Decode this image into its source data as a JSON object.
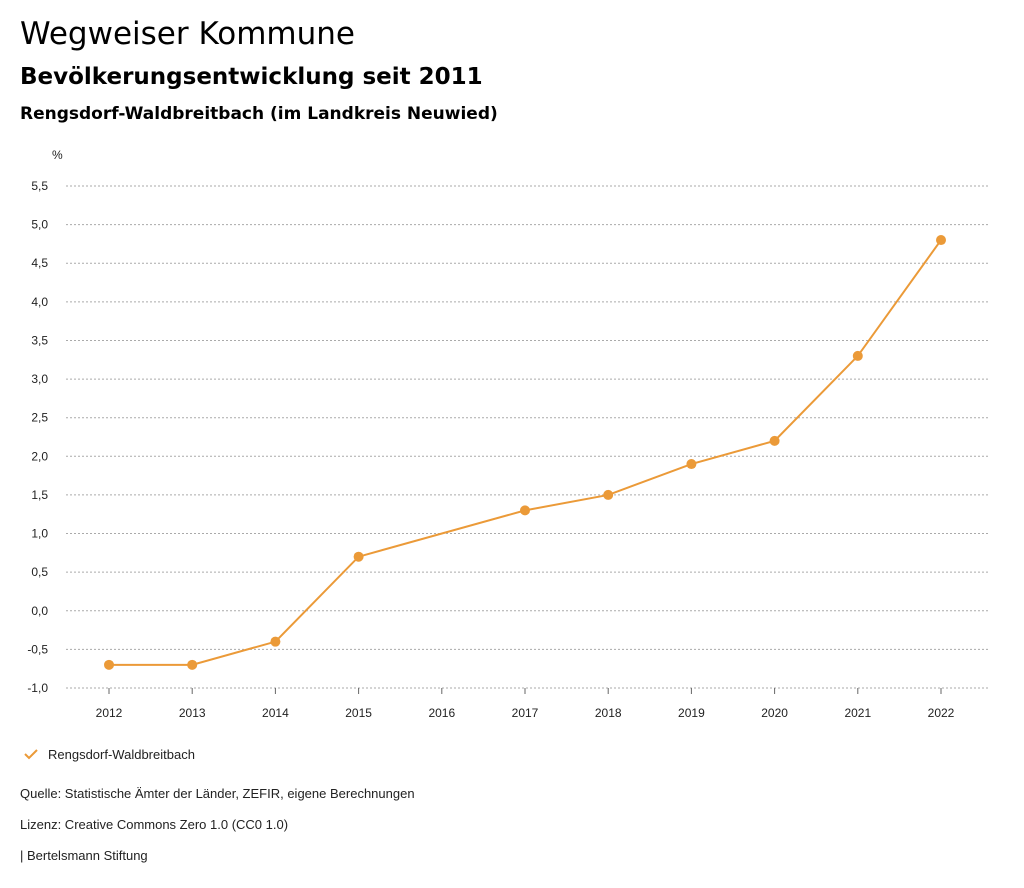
{
  "header": {
    "title": "Wegweiser Kommune",
    "subtitle": "Bevölkerungsentwicklung seit 2011",
    "region": "Rengsdorf-Waldbreitbach (im Landkreis Neuwied)"
  },
  "chart_data": {
    "type": "line",
    "unit_label": "%",
    "x": [
      "2012",
      "2013",
      "2014",
      "2015",
      "2016",
      "2017",
      "2018",
      "2019",
      "2020",
      "2021",
      "2022"
    ],
    "series": [
      {
        "name": "Rengsdorf-Waldbreitbach",
        "values": [
          -0.7,
          -0.7,
          -0.4,
          0.7,
          null,
          1.3,
          1.5,
          1.9,
          2.2,
          3.3,
          4.8
        ],
        "color": "#eb9a38"
      }
    ],
    "ylim": [
      -1.0,
      5.5
    ],
    "yticks": [
      5.5,
      5.0,
      4.5,
      4.0,
      3.5,
      3.0,
      2.5,
      2.0,
      1.5,
      1.0,
      0.5,
      0.0,
      -0.5,
      -1.0
    ],
    "ytick_labels": [
      "5,5",
      "5,0",
      "4,5",
      "4,0",
      "3,5",
      "3,0",
      "2,5",
      "2,0",
      "1,5",
      "1,0",
      "0,5",
      "0,0",
      "-0,5",
      "-1,0"
    ],
    "grid": true,
    "legend_position": "bottom-left"
  },
  "legend": {
    "label": "Rengsdorf-Waldbreitbach",
    "icon": "check-icon"
  },
  "footer": {
    "source": "Quelle: Statistische Ämter der Länder, ZEFIR, eigene Berechnungen",
    "license": "Lizenz: Creative Commons Zero 1.0 (CC0 1.0)",
    "credit": "| Bertelsmann Stiftung"
  }
}
